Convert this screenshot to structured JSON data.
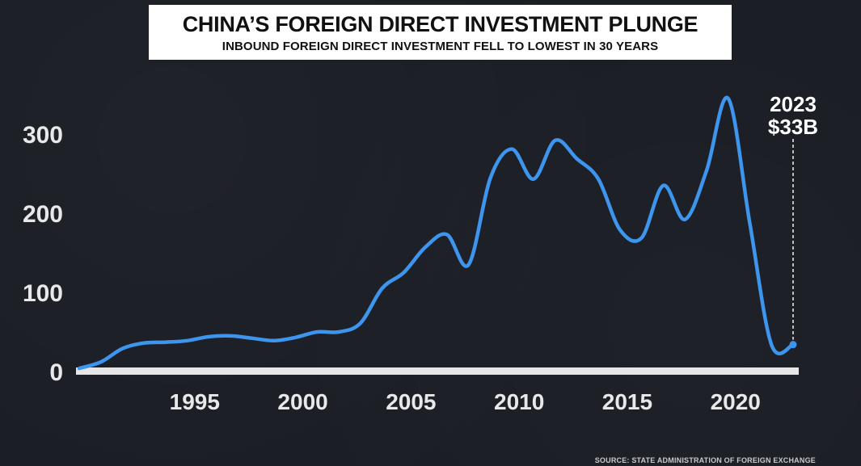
{
  "header": {
    "title": "CHINA’S FOREIGN DIRECT INVESTMENT PLUNGE",
    "subtitle": "INBOUND FOREIGN DIRECT INVESTMENT FELL TO LOWEST IN 30 YEARS"
  },
  "source": "SOURCE: STATE ADMINISTRATION OF FOREIGN EXCHANGE",
  "colors": {
    "line": "#3d95ee",
    "background": "#1b1d25",
    "axis": "#e6e6e6",
    "text": "#e8e8e8"
  },
  "chart_data": {
    "type": "line",
    "title": "CHINA’S FOREIGN DIRECT INVESTMENT PLUNGE",
    "subtitle": "INBOUND FOREIGN DIRECT INVESTMENT FELL TO LOWEST IN 30 YEARS",
    "xlabel": "",
    "ylabel": "",
    "x_ticks": [
      "1995",
      "2000",
      "2005",
      "2010",
      "2015",
      "2020"
    ],
    "y_ticks": [
      "0",
      "100",
      "200",
      "300"
    ],
    "xlim": [
      1990,
      2023
    ],
    "ylim": [
      0,
      350
    ],
    "grid": false,
    "annotation": {
      "year_label": "2023",
      "value_label": "$33B",
      "x": 2023,
      "y": 33
    },
    "series": [
      {
        "x": [
          1990,
          1991,
          1992,
          1993,
          1994,
          1995,
          1996,
          1997,
          1998,
          1999,
          2000,
          2001,
          2002,
          2003,
          2004,
          2005,
          2006,
          2007,
          2008,
          2009,
          2010,
          2011,
          2012,
          2013,
          2014,
          2015,
          2016,
          2017,
          2018,
          2019,
          2020,
          2021,
          2022,
          2023
        ],
        "y": [
          3,
          11,
          28,
          35,
          36,
          38,
          43,
          44,
          41,
          38,
          42,
          49,
          49,
          60,
          104,
          124,
          156,
          172,
          134,
          243,
          280,
          242,
          291,
          268,
          242,
          178,
          168,
          234,
          191,
          253,
          344,
          186,
          33,
          33
        ]
      }
    ]
  }
}
